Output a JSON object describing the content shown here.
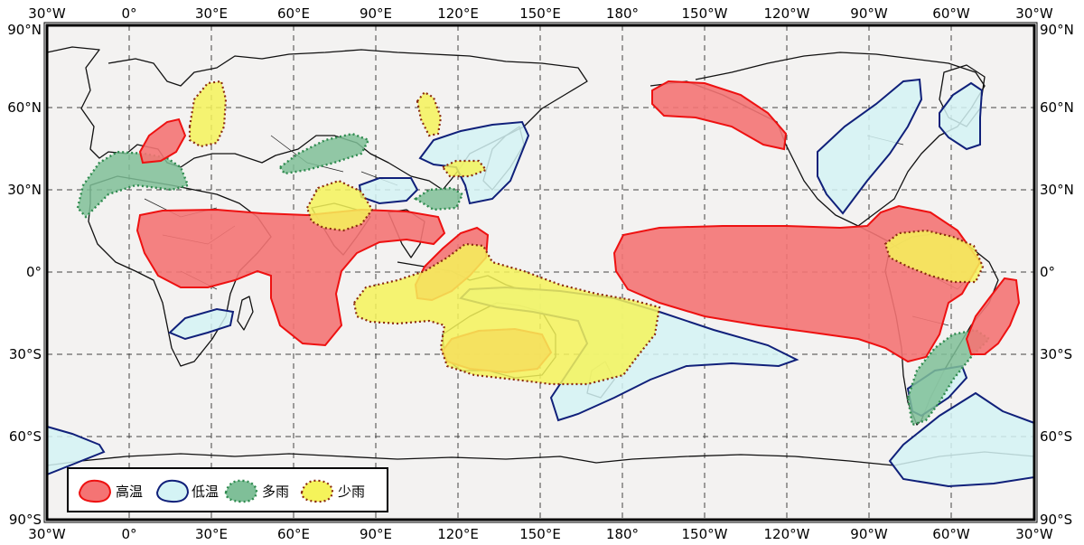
{
  "lon_labels_top": [
    "30°W",
    "0°",
    "30°E",
    "60°E",
    "90°E",
    "120°E",
    "150°E",
    "180°",
    "150°W",
    "120°W",
    "90°W",
    "60°W",
    "30°W"
  ],
  "lon_labels_bottom": [
    "30°W",
    "0°",
    "30°E",
    "60°E",
    "90°E",
    "120°E",
    "150°E",
    "180°",
    "150°W",
    "120°W",
    "90°W",
    "60°W",
    "30°W"
  ],
  "lat_labels_left": [
    "90°N",
    "60°N",
    "30°N",
    "0°",
    "30°S",
    "60°S",
    "90°S"
  ],
  "lat_labels_right": [
    "90°N",
    "60°N",
    "30°N",
    "0°",
    "30°S",
    "60°S",
    "90°S"
  ],
  "legend": {
    "hot": "高温",
    "cold": "低温",
    "wet": "多雨",
    "dry": "少雨"
  },
  "colors": {
    "hot_fill": "#f47474",
    "hot_stroke": "#ee1111",
    "cold_fill": "#d4f3f5",
    "cold_stroke": "#10207a",
    "wet_fill": "#7fbf98",
    "wet_stroke": "#2e8a4e",
    "dry_fill": "#f5f35a",
    "dry_stroke": "#8b2a10",
    "ocean": "#f3f2f1"
  }
}
